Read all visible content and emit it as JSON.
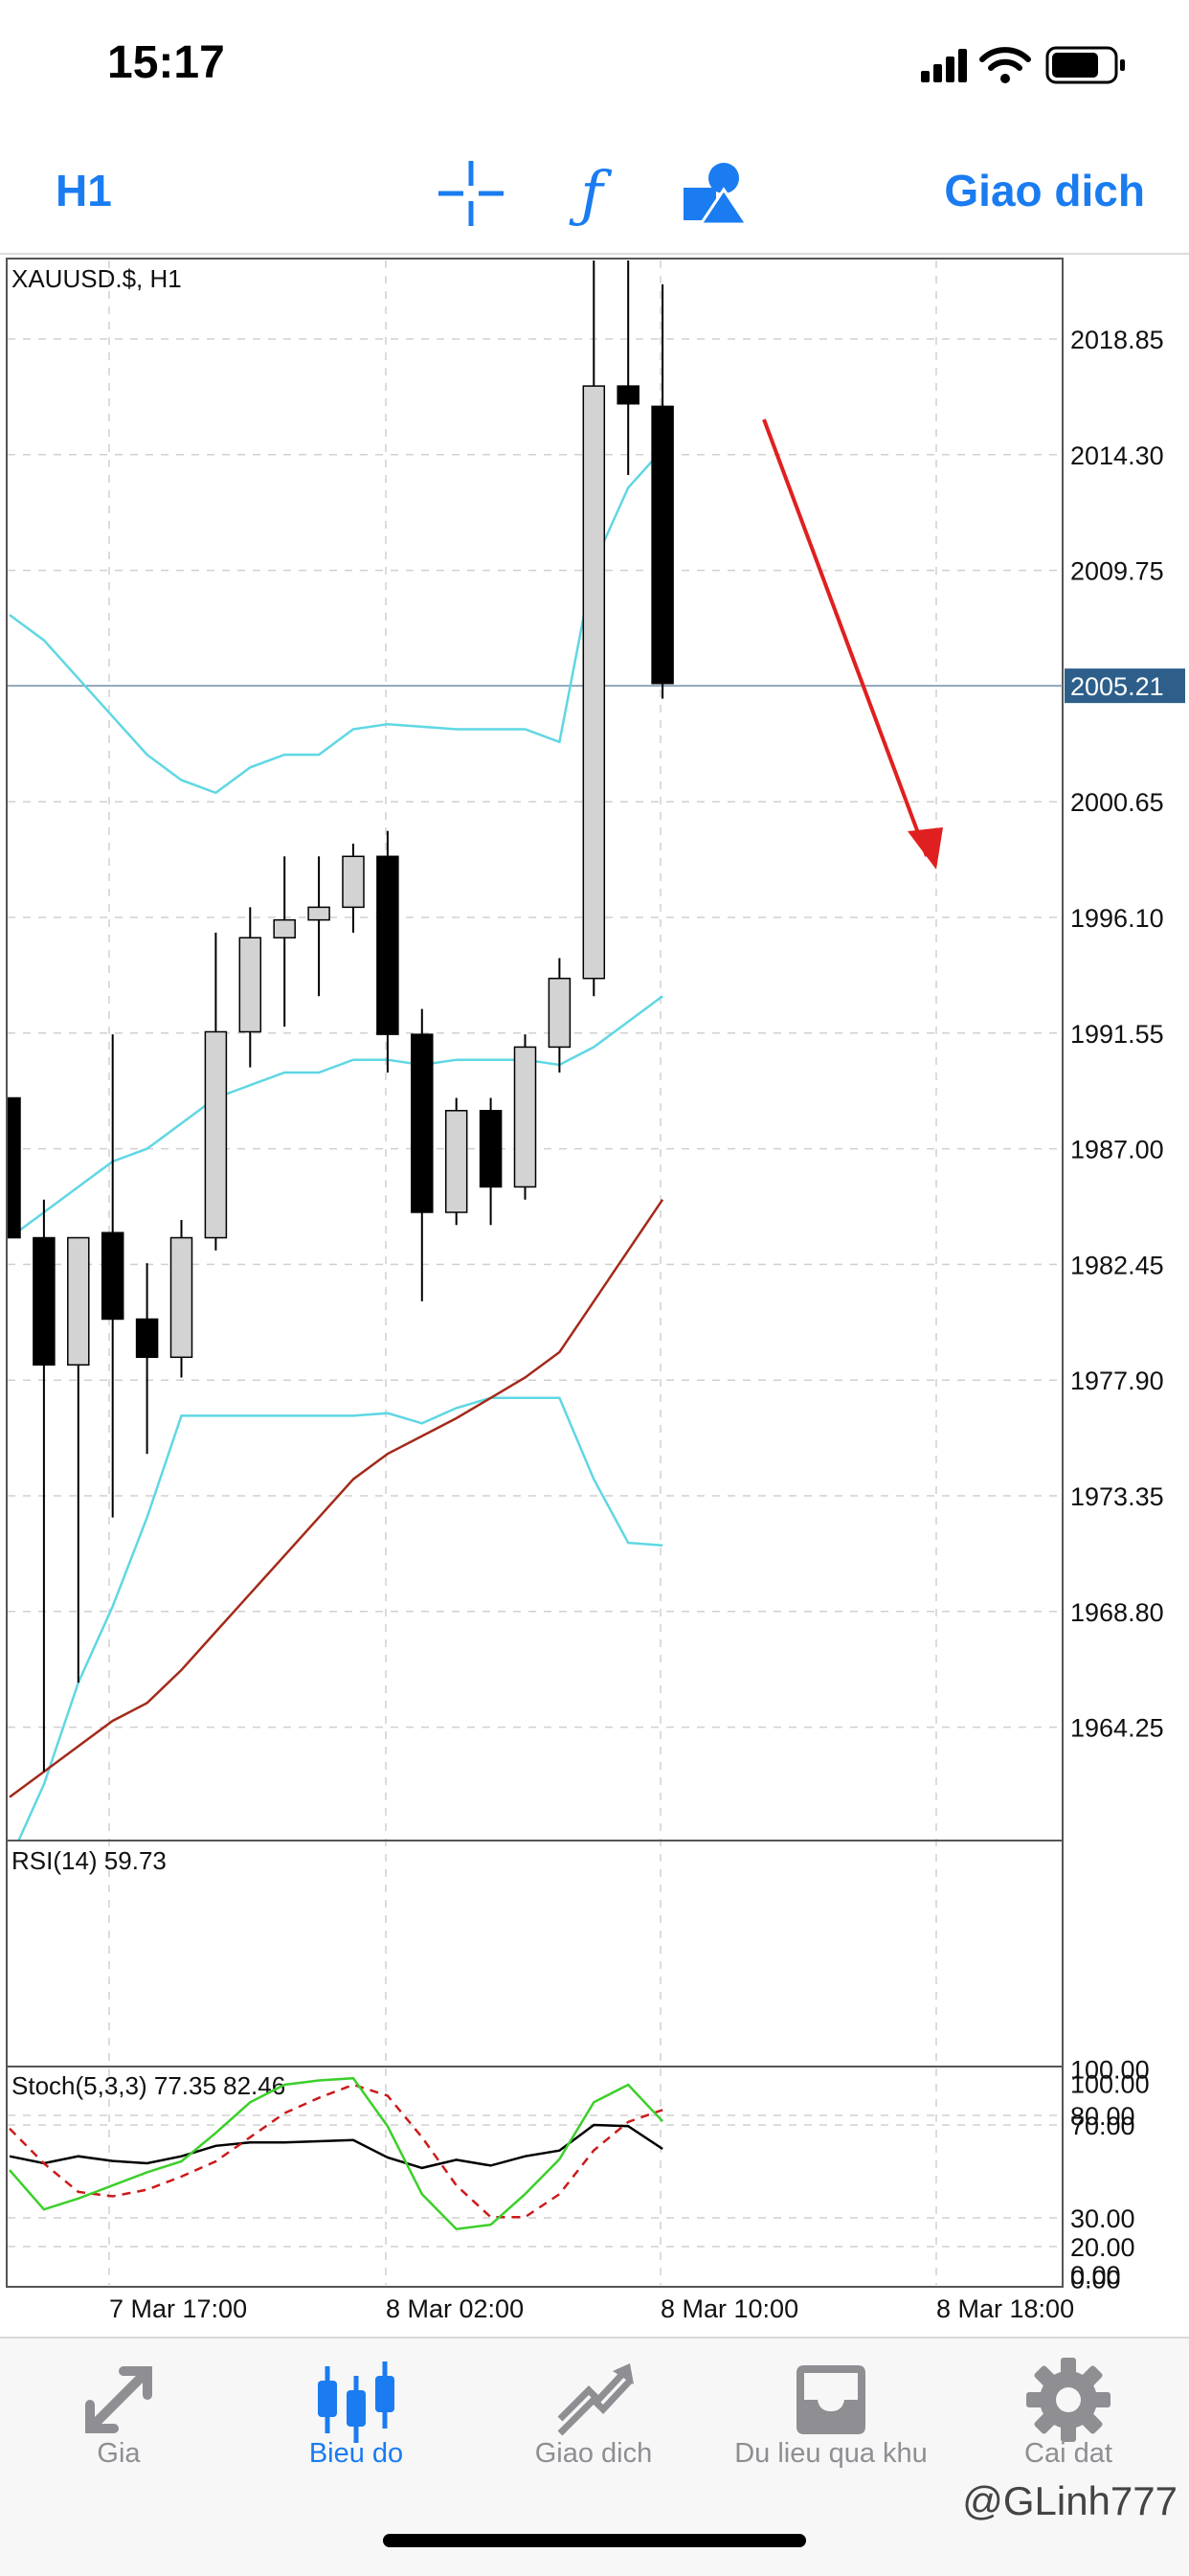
{
  "status_bar": {
    "time": "15:17",
    "icons": [
      "signal-icon",
      "wifi-icon",
      "battery-icon"
    ]
  },
  "toolbar": {
    "period": "H1",
    "trade_label": "Giao dich",
    "icons": [
      "crosshair-icon",
      "indicators-icon",
      "objects-icon"
    ],
    "accent_color": "#1a7cf0"
  },
  "chart_data": [
    {
      "type": "candlestick",
      "title": "XAUUSD.$, H1",
      "current_price": "2005.21",
      "ylim": [
        1960,
        2022
      ],
      "y_ticks": [
        "2018.85",
        "2014.30",
        "2009.75",
        "2005.21",
        "2000.65",
        "1996.10",
        "1991.55",
        "1987.00",
        "1982.45",
        "1977.90",
        "1973.35",
        "1968.80",
        "1964.25"
      ],
      "x_ticks": [
        "7 Mar 17:00",
        "8 Mar 02:00",
        "8 Mar 10:00",
        "8 Mar 18:00"
      ],
      "candles": [
        {
          "o": 1989.0,
          "h": 1989.0,
          "l": 1983.5,
          "c": 1983.5
        },
        {
          "o": 1983.5,
          "h": 1985.0,
          "l": 1962.5,
          "c": 1978.5
        },
        {
          "o": 1978.5,
          "h": 1983.5,
          "l": 1966.0,
          "c": 1983.5
        },
        {
          "o": 1983.7,
          "h": 1991.5,
          "l": 1972.5,
          "c": 1980.3
        },
        {
          "o": 1980.3,
          "h": 1982.5,
          "l": 1975.0,
          "c": 1978.8
        },
        {
          "o": 1978.8,
          "h": 1984.2,
          "l": 1978.0,
          "c": 1983.5
        },
        {
          "o": 1983.5,
          "h": 1995.5,
          "l": 1983.0,
          "c": 1991.6
        },
        {
          "o": 1991.6,
          "h": 1996.5,
          "l": 1990.2,
          "c": 1995.3
        },
        {
          "o": 1995.3,
          "h": 1998.5,
          "l": 1991.8,
          "c": 1996.0
        },
        {
          "o": 1996.0,
          "h": 1998.5,
          "l": 1993.0,
          "c": 1996.5
        },
        {
          "o": 1996.5,
          "h": 1999.0,
          "l": 1995.5,
          "c": 1998.5
        },
        {
          "o": 1998.5,
          "h": 1999.5,
          "l": 1990.0,
          "c": 1991.5
        },
        {
          "o": 1991.5,
          "h": 1992.5,
          "l": 1981.0,
          "c": 1984.5
        },
        {
          "o": 1984.5,
          "h": 1989.0,
          "l": 1984.0,
          "c": 1988.5
        },
        {
          "o": 1988.5,
          "h": 1989.0,
          "l": 1984.0,
          "c": 1985.5
        },
        {
          "o": 1985.5,
          "h": 1991.5,
          "l": 1985.0,
          "c": 1991.0
        },
        {
          "o": 1991.0,
          "h": 1994.5,
          "l": 1990.0,
          "c": 1993.7
        },
        {
          "o": 1993.7,
          "h": 2022.0,
          "l": 1993.0,
          "c": 2017.0
        },
        {
          "o": 2017.0,
          "h": 2022.0,
          "l": 2013.5,
          "c": 2016.3
        },
        {
          "o": 2016.2,
          "h": 2021.0,
          "l": 2004.7,
          "c": 2005.3
        }
      ],
      "bollinger_upper": [
        2008.0,
        2007.0,
        2005.5,
        2004.0,
        2002.5,
        2001.5,
        2001.0,
        2002.0,
        2002.5,
        2002.5,
        2003.5,
        2003.7,
        2003.6,
        2003.5,
        2003.5,
        2003.5,
        2003.0,
        2010.0,
        2013.0,
        2014.5
      ],
      "bollinger_middle": [
        1983.5,
        1984.5,
        1985.5,
        1986.5,
        1987.0,
        1988.0,
        1989.0,
        1989.5,
        1990.0,
        1990.0,
        1990.5,
        1990.5,
        1990.3,
        1990.5,
        1990.5,
        1990.5,
        1990.3,
        1991.0,
        1992.0,
        1993.0
      ],
      "bollinger_lower": [
        1959.0,
        1962.0,
        1966.0,
        1969.0,
        1972.5,
        1976.5,
        1976.5,
        1976.5,
        1976.5,
        1976.5,
        1976.5,
        1976.6,
        1976.2,
        1976.8,
        1977.2,
        1977.2,
        1977.2,
        1974.0,
        1971.5,
        1971.4
      ],
      "moving_average": [
        1961.5,
        1962.5,
        1963.5,
        1964.5,
        1965.2,
        1966.5,
        1968.0,
        1969.5,
        1971.0,
        1972.5,
        1974.0,
        1975.0,
        1975.7,
        1976.4,
        1977.2,
        1978.0,
        1979.0,
        1981.0,
        1983.0,
        1985.0
      ],
      "colors": {
        "bull_candle": "#d3d3d3",
        "bear_candle": "#000000",
        "bollinger": "#5fd7e3",
        "moving_average": "#a32a1a",
        "annotation_arrow": "#e02020",
        "price_label_bg": "#2e5f8a"
      }
    },
    {
      "type": "line",
      "title": "RSI(14) 59.73",
      "ylim": [
        0,
        100
      ],
      "y_ticks": [
        "100.00",
        "70.00",
        "30.00",
        "0.00"
      ],
      "values": [
        56.5,
        53.5,
        56.5,
        54.5,
        53.5,
        56.5,
        61.0,
        62.5,
        62.5,
        63.0,
        63.5,
        56.0,
        51.5,
        55.0,
        52.5,
        56.5,
        59.0,
        70.0,
        69.5,
        59.7
      ]
    },
    {
      "type": "line",
      "title": "Stoch(5,3,3) 77.35 82.46",
      "ylim": [
        0,
        100
      ],
      "y_ticks": [
        "100.00",
        "80.00",
        "20.00",
        "0.00"
      ],
      "main": [
        55.0,
        37.0,
        42.0,
        48.0,
        54.0,
        59.0,
        72.0,
        86.0,
        94.0,
        96.0,
        97.0,
        75.0,
        44.0,
        28.0,
        30.0,
        44.0,
        60.0,
        86.0,
        94.0,
        77.3
      ],
      "signal": [
        74.0,
        58.0,
        45.0,
        43.0,
        46.0,
        52.0,
        59.0,
        70.0,
        81.0,
        88.0,
        94.0,
        89.0,
        70.0,
        48.0,
        33.5,
        33.5,
        44.0,
        64.0,
        77.0,
        82.5
      ],
      "colors": {
        "main": "#3ccf2a",
        "signal": "#cc1a1a"
      }
    }
  ],
  "tabs": [
    {
      "label": "Gia",
      "icon": "arrows-icon",
      "active": false
    },
    {
      "label": "Bieu do",
      "icon": "candles-icon",
      "active": true
    },
    {
      "label": "Giao dich",
      "icon": "trade-chart-icon",
      "active": false
    },
    {
      "label": "Du lieu qua khu",
      "icon": "history-tray-icon",
      "active": false
    },
    {
      "label": "Cai dat",
      "icon": "gear-icon",
      "active": false
    }
  ],
  "watermark": "@GLinh777"
}
